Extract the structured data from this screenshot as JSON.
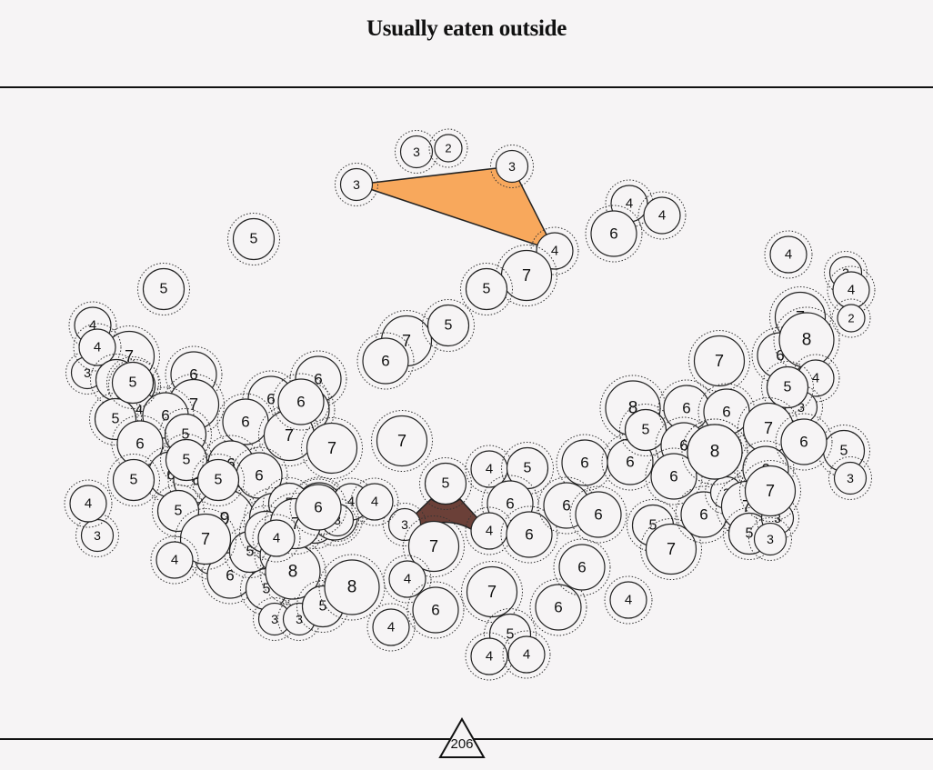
{
  "title": "Usually eaten outside",
  "page_number": "206",
  "colors": {
    "background": "#f6f4f5",
    "node_fill": "#f6f4f5",
    "node_stroke": "#222222",
    "highlight_top": "#f8a85c",
    "highlight_bottom": "#6b4038",
    "rule": "#111111"
  },
  "nodes": [
    {
      "label": "3"
    },
    {
      "label": "2"
    },
    {
      "label": "3"
    },
    {
      "label": "3"
    },
    {
      "label": "4"
    },
    {
      "label": "4"
    },
    {
      "label": "6"
    },
    {
      "label": "4"
    },
    {
      "label": "5"
    },
    {
      "label": "7"
    },
    {
      "label": "5"
    },
    {
      "label": "5"
    },
    {
      "label": "7"
    },
    {
      "label": "6"
    },
    {
      "label": "4"
    },
    {
      "label": "3"
    },
    {
      "label": "4"
    },
    {
      "label": "2"
    },
    {
      "label": "7"
    },
    {
      "label": "8"
    },
    {
      "label": "6"
    },
    {
      "label": "4"
    },
    {
      "label": "5"
    },
    {
      "label": "3"
    },
    {
      "label": "7"
    },
    {
      "label": "4"
    },
    {
      "label": "4"
    },
    {
      "label": "7"
    },
    {
      "label": "3"
    },
    {
      "label": "5"
    },
    {
      "label": "5"
    },
    {
      "label": "5"
    },
    {
      "label": "6"
    },
    {
      "label": "4"
    },
    {
      "label": "6"
    },
    {
      "label": "7"
    },
    {
      "label": "5"
    },
    {
      "label": "6"
    },
    {
      "label": "5"
    },
    {
      "label": "5"
    },
    {
      "label": "6"
    },
    {
      "label": "6"
    },
    {
      "label": "6"
    },
    {
      "label": "6"
    },
    {
      "label": "7"
    },
    {
      "label": "7"
    },
    {
      "label": "7"
    },
    {
      "label": "6"
    },
    {
      "label": "6"
    },
    {
      "label": "5"
    },
    {
      "label": "5"
    },
    {
      "label": "6"
    },
    {
      "label": "6"
    },
    {
      "label": "9"
    },
    {
      "label": "5"
    },
    {
      "label": "5"
    },
    {
      "label": "6"
    },
    {
      "label": "7"
    },
    {
      "label": "3"
    },
    {
      "label": "4"
    },
    {
      "label": "3"
    },
    {
      "label": "6"
    },
    {
      "label": "5"
    },
    {
      "label": "5"
    },
    {
      "label": "7"
    },
    {
      "label": "6"
    },
    {
      "label": "6"
    },
    {
      "label": "5"
    },
    {
      "label": "4"
    },
    {
      "label": "5"
    },
    {
      "label": "5"
    },
    {
      "label": "4"
    },
    {
      "label": "6"
    },
    {
      "label": "8"
    },
    {
      "label": "3"
    },
    {
      "label": "3"
    },
    {
      "label": "5"
    },
    {
      "label": "8"
    },
    {
      "label": "4"
    },
    {
      "label": "5"
    },
    {
      "label": "4"
    },
    {
      "label": "5"
    },
    {
      "label": "3"
    },
    {
      "label": "6"
    },
    {
      "label": "7"
    },
    {
      "label": "4"
    },
    {
      "label": "6"
    },
    {
      "label": "4"
    },
    {
      "label": "6"
    },
    {
      "label": "7"
    },
    {
      "label": "5"
    },
    {
      "label": "4"
    },
    {
      "label": "4"
    },
    {
      "label": "6"
    },
    {
      "label": "6"
    },
    {
      "label": "6"
    },
    {
      "label": "6"
    },
    {
      "label": "6"
    },
    {
      "label": "6"
    },
    {
      "label": "4"
    },
    {
      "label": "8"
    },
    {
      "label": "5"
    },
    {
      "label": "6"
    },
    {
      "label": "6"
    },
    {
      "label": "6"
    },
    {
      "label": "8"
    },
    {
      "label": "6"
    },
    {
      "label": "5"
    },
    {
      "label": "7"
    },
    {
      "label": "6"
    },
    {
      "label": "3"
    },
    {
      "label": "7"
    },
    {
      "label": "5"
    },
    {
      "label": "3"
    },
    {
      "label": "3"
    },
    {
      "label": "7"
    },
    {
      "label": "6"
    },
    {
      "label": "5"
    },
    {
      "label": "3"
    },
    {
      "label": "4"
    },
    {
      "label": "4"
    },
    {
      "label": "3"
    },
    {
      "label": "7"
    },
    {
      "label": "7"
    },
    {
      "label": "6"
    },
    {
      "label": "8"
    },
    {
      "label": "6"
    },
    {
      "label": "4"
    }
  ]
}
